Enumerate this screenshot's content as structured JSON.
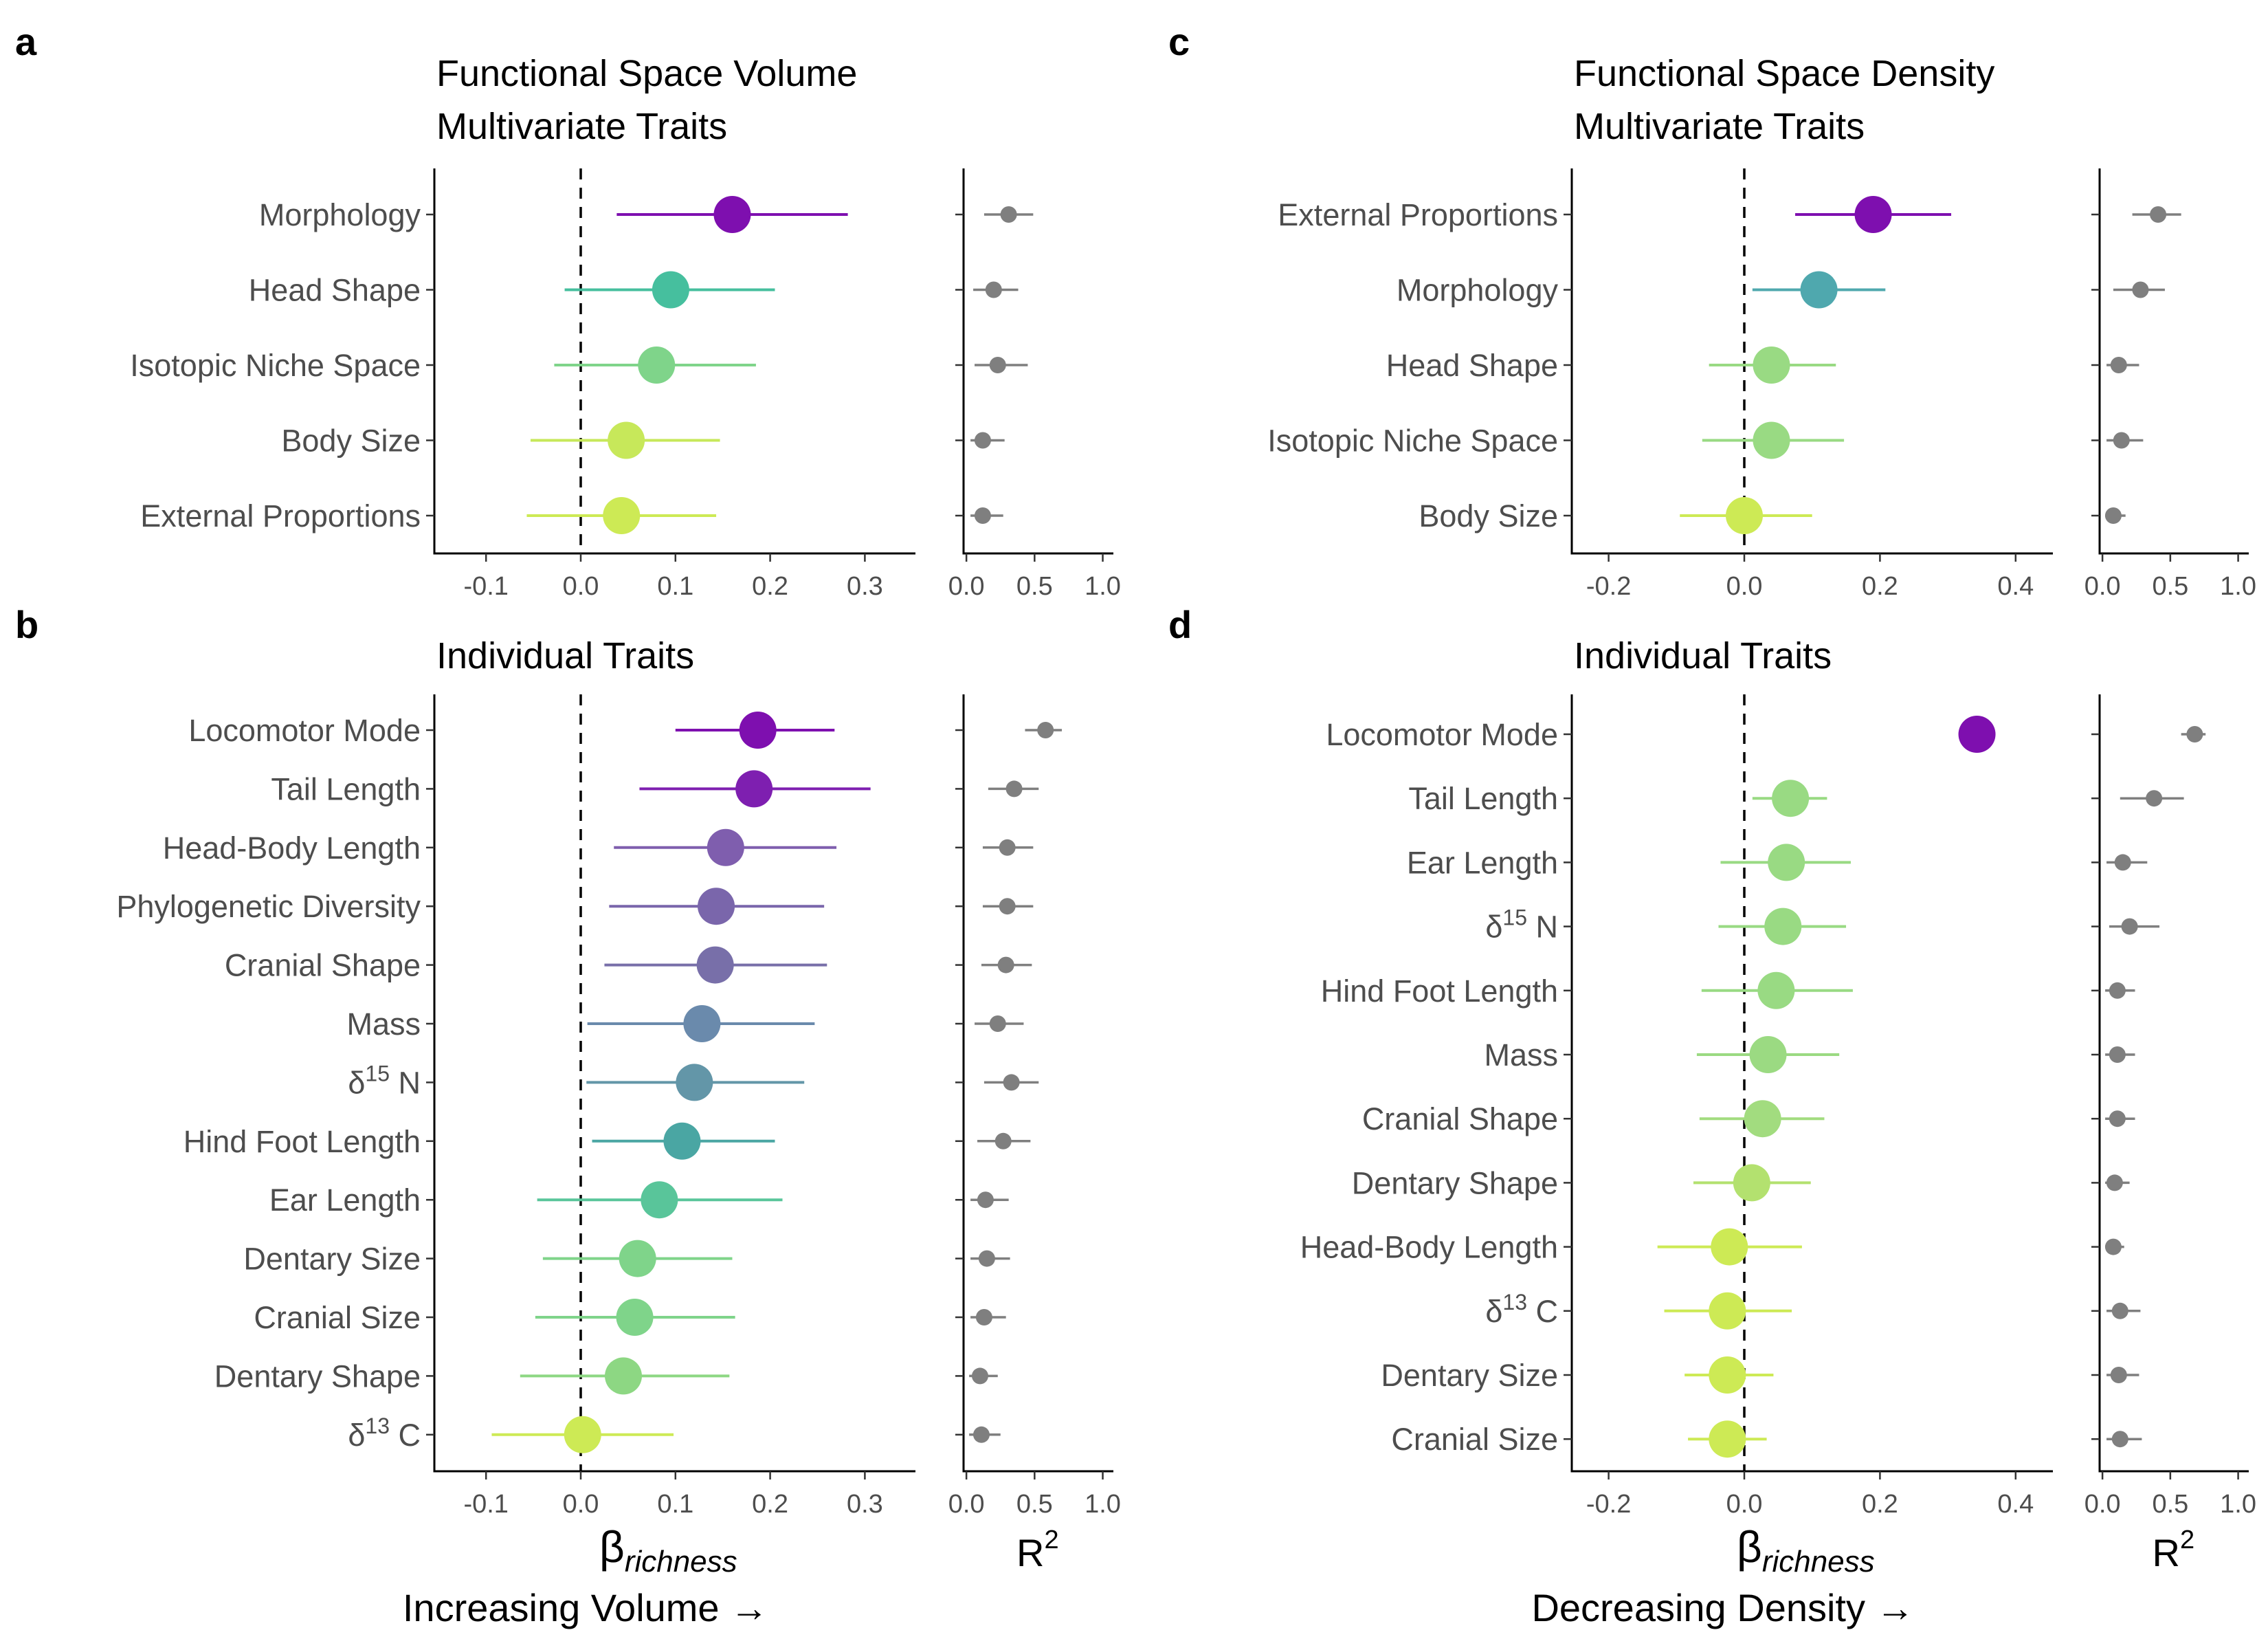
{
  "chart_data": [
    {
      "panel": "a",
      "type": "dot-interval",
      "title": "Functional Space Volume",
      "subtitle": "Multivariate Traits",
      "xlim": [
        -0.15,
        0.35
      ],
      "xticks": [
        "-0.1",
        "0.0",
        "0.1",
        "0.2",
        "0.3"
      ],
      "xtick_values": [
        -0.1,
        0,
        0.1,
        0.2,
        0.3
      ],
      "r2_ticks": [
        "0.0",
        "0.5",
        "1.0"
      ],
      "items": [
        {
          "label": "Morphology",
          "est": 0.16,
          "lo": 0.038,
          "hi": 0.282,
          "color": "#7e0faf",
          "r2": 0.31,
          "r2_lo": 0.13,
          "r2_hi": 0.49
        },
        {
          "label": "Head Shape",
          "est": 0.095,
          "lo": -0.017,
          "hi": 0.205,
          "color": "#46bf9e",
          "r2": 0.2,
          "r2_lo": 0.05,
          "r2_hi": 0.38
        },
        {
          "label": "Isotopic Niche Space",
          "est": 0.08,
          "lo": -0.028,
          "hi": 0.185,
          "color": "#7fd48a",
          "r2": 0.23,
          "r2_lo": 0.06,
          "r2_hi": 0.45
        },
        {
          "label": "Body Size",
          "est": 0.048,
          "lo": -0.053,
          "hi": 0.147,
          "color": "#c7e85a",
          "r2": 0.12,
          "r2_lo": 0.03,
          "r2_hi": 0.28
        },
        {
          "label": "External Proportions",
          "est": 0.043,
          "lo": -0.057,
          "hi": 0.143,
          "color": "#cdea55",
          "r2": 0.12,
          "r2_lo": 0.03,
          "r2_hi": 0.27
        }
      ]
    },
    {
      "panel": "b",
      "type": "dot-interval",
      "title": "",
      "subtitle": "Individual Traits",
      "xlim": [
        -0.15,
        0.35
      ],
      "xticks": [
        "-0.1",
        "0.0",
        "0.1",
        "0.2",
        "0.3"
      ],
      "xtick_values": [
        -0.1,
        0,
        0.1,
        0.2,
        0.3
      ],
      "r2_ticks": [
        "0.0",
        "0.5",
        "1.0"
      ],
      "xlabel": "β",
      "xlabel_sub": "richness",
      "r2_label": "R",
      "r2_label_sup": "2",
      "direction_label": "Increasing Volume →",
      "items": [
        {
          "label": "Locomotor Mode",
          "est": 0.187,
          "lo": 0.1,
          "hi": 0.268,
          "color": "#7e0faf",
          "r2": 0.58,
          "r2_lo": 0.43,
          "r2_hi": 0.7
        },
        {
          "label": "Tail Length",
          "est": 0.183,
          "lo": 0.062,
          "hi": 0.306,
          "color": "#7e1fb0",
          "r2": 0.35,
          "r2_lo": 0.16,
          "r2_hi": 0.53
        },
        {
          "label": "Head-Body Length",
          "est": 0.153,
          "lo": 0.035,
          "hi": 0.27,
          "color": "#7f5eae",
          "r2": 0.3,
          "r2_lo": 0.12,
          "r2_hi": 0.49
        },
        {
          "label": "Phylogenetic Diversity",
          "est": 0.143,
          "lo": 0.03,
          "hi": 0.257,
          "color": "#7a66ab",
          "r2": 0.3,
          "r2_lo": 0.12,
          "r2_hi": 0.49
        },
        {
          "label": "Cranial Shape",
          "est": 0.142,
          "lo": 0.025,
          "hi": 0.26,
          "color": "#786fa9",
          "r2": 0.29,
          "r2_lo": 0.11,
          "r2_hi": 0.48
        },
        {
          "label": "Mass",
          "est": 0.128,
          "lo": 0.007,
          "hi": 0.247,
          "color": "#6a8aac",
          "r2": 0.23,
          "r2_lo": 0.06,
          "r2_hi": 0.42
        },
        {
          "label": "δ15N",
          "label_html": [
            "δ",
            "15",
            " N"
          ],
          "est": 0.12,
          "lo": 0.006,
          "hi": 0.236,
          "color": "#6396a8",
          "r2": 0.33,
          "r2_lo": 0.13,
          "r2_hi": 0.53
        },
        {
          "label": "Hind Foot Length",
          "est": 0.107,
          "lo": 0.012,
          "hi": 0.205,
          "color": "#4aa6a3",
          "r2": 0.27,
          "r2_lo": 0.08,
          "r2_hi": 0.47
        },
        {
          "label": "Ear Length",
          "est": 0.083,
          "lo": -0.046,
          "hi": 0.213,
          "color": "#59c59a",
          "r2": 0.14,
          "r2_lo": 0.03,
          "r2_hi": 0.31
        },
        {
          "label": "Dentary Size",
          "est": 0.06,
          "lo": -0.04,
          "hi": 0.16,
          "color": "#7fd48a",
          "r2": 0.15,
          "r2_lo": 0.03,
          "r2_hi": 0.32
        },
        {
          "label": "Cranial Size",
          "est": 0.057,
          "lo": -0.048,
          "hi": 0.163,
          "color": "#7fd48a",
          "r2": 0.13,
          "r2_lo": 0.03,
          "r2_hi": 0.29
        },
        {
          "label": "Dentary Shape",
          "est": 0.045,
          "lo": -0.064,
          "hi": 0.157,
          "color": "#8dd783",
          "r2": 0.1,
          "r2_lo": 0.02,
          "r2_hi": 0.23
        },
        {
          "label": "δ13C",
          "label_html": [
            "δ",
            "13",
            " C"
          ],
          "est": 0.002,
          "lo": -0.094,
          "hi": 0.098,
          "color": "#cdea55",
          "r2": 0.11,
          "r2_lo": 0.02,
          "r2_hi": 0.25
        }
      ]
    },
    {
      "panel": "c",
      "type": "dot-interval",
      "title": "Functional Space Density",
      "subtitle": "Multivariate Traits",
      "xlim": [
        -0.25,
        0.46
      ],
      "xticks": [
        "-0.2",
        "0.0",
        "0.2",
        "0.4"
      ],
      "xtick_values": [
        -0.2,
        0,
        0.2,
        0.4
      ],
      "r2_ticks": [
        "0.0",
        "0.5",
        "1.0"
      ],
      "items": [
        {
          "label": "External Proportions",
          "est": 0.19,
          "lo": 0.075,
          "hi": 0.305,
          "color": "#7e0faf",
          "r2": 0.41,
          "r2_lo": 0.22,
          "r2_hi": 0.58
        },
        {
          "label": "Morphology",
          "est": 0.11,
          "lo": 0.012,
          "hi": 0.208,
          "color": "#4fa8ae",
          "r2": 0.28,
          "r2_lo": 0.08,
          "r2_hi": 0.46
        },
        {
          "label": "Head Shape",
          "est": 0.04,
          "lo": -0.052,
          "hi": 0.135,
          "color": "#99da83",
          "r2": 0.12,
          "r2_lo": 0.03,
          "r2_hi": 0.27
        },
        {
          "label": "Isotopic Niche Space",
          "est": 0.04,
          "lo": -0.062,
          "hi": 0.147,
          "color": "#99da83",
          "r2": 0.14,
          "r2_lo": 0.03,
          "r2_hi": 0.3
        },
        {
          "label": "Body Size",
          "est": 0.0,
          "lo": -0.095,
          "hi": 0.1,
          "color": "#cdea55",
          "r2": 0.08,
          "r2_lo": 0.02,
          "r2_hi": 0.17
        }
      ]
    },
    {
      "panel": "d",
      "type": "dot-interval",
      "title": "",
      "subtitle": "Individual Traits",
      "xlim": [
        -0.25,
        0.46
      ],
      "xticks": [
        "-0.2",
        "0.0",
        "0.2",
        "0.4"
      ],
      "xtick_values": [
        -0.2,
        0,
        0.2,
        0.4
      ],
      "r2_ticks": [
        "0.0",
        "0.5",
        "1.0"
      ],
      "xlabel": "β",
      "xlabel_sub": "richness",
      "r2_label": "R",
      "r2_label_sup": "2",
      "direction_label": "Decreasing Density →",
      "items": [
        {
          "label": "Locomotor Mode",
          "est": 0.343,
          "lo": 0.343,
          "hi": 0.343,
          "color": "#7e0faf",
          "r2": 0.68,
          "r2_lo": 0.58,
          "r2_hi": 0.76
        },
        {
          "label": "Tail Length",
          "est": 0.068,
          "lo": 0.012,
          "hi": 0.122,
          "color": "#99da83",
          "r2": 0.38,
          "r2_lo": 0.13,
          "r2_hi": 0.6
        },
        {
          "label": "Ear Length",
          "est": 0.062,
          "lo": -0.035,
          "hi": 0.157,
          "color": "#99da83",
          "r2": 0.15,
          "r2_lo": 0.03,
          "r2_hi": 0.33
        },
        {
          "label": "δ15N",
          "label_html": [
            "δ",
            "15",
            " N"
          ],
          "est": 0.057,
          "lo": -0.038,
          "hi": 0.15,
          "color": "#99da83",
          "r2": 0.2,
          "r2_lo": 0.05,
          "r2_hi": 0.42
        },
        {
          "label": "Hind Foot Length",
          "est": 0.047,
          "lo": -0.063,
          "hi": 0.16,
          "color": "#99da83",
          "r2": 0.11,
          "r2_lo": 0.02,
          "r2_hi": 0.24
        },
        {
          "label": "Mass",
          "est": 0.035,
          "lo": -0.07,
          "hi": 0.14,
          "color": "#9bda82",
          "r2": 0.11,
          "r2_lo": 0.02,
          "r2_hi": 0.24
        },
        {
          "label": "Cranial Shape",
          "est": 0.027,
          "lo": -0.066,
          "hi": 0.118,
          "color": "#a2dc7f",
          "r2": 0.11,
          "r2_lo": 0.02,
          "r2_hi": 0.24
        },
        {
          "label": "Dentary Shape",
          "est": 0.011,
          "lo": -0.075,
          "hi": 0.098,
          "color": "#b3e16f",
          "r2": 0.09,
          "r2_lo": 0.02,
          "r2_hi": 0.2
        },
        {
          "label": "Head-Body Length",
          "est": -0.022,
          "lo": -0.128,
          "hi": 0.085,
          "color": "#cdea55",
          "r2": 0.08,
          "r2_lo": 0.02,
          "r2_hi": 0.16
        },
        {
          "label": "δ13C",
          "label_html": [
            "δ",
            "13",
            " C"
          ],
          "est": -0.025,
          "lo": -0.118,
          "hi": 0.07,
          "color": "#cdea55",
          "r2": 0.13,
          "r2_lo": 0.03,
          "r2_hi": 0.28
        },
        {
          "label": "Dentary Size",
          "est": -0.025,
          "lo": -0.088,
          "hi": 0.043,
          "color": "#cdea55",
          "r2": 0.12,
          "r2_lo": 0.03,
          "r2_hi": 0.27
        },
        {
          "label": "Cranial Size",
          "est": -0.025,
          "lo": -0.083,
          "hi": 0.033,
          "color": "#cdea55",
          "r2": 0.13,
          "r2_lo": 0.03,
          "r2_hi": 0.29
        }
      ]
    }
  ]
}
